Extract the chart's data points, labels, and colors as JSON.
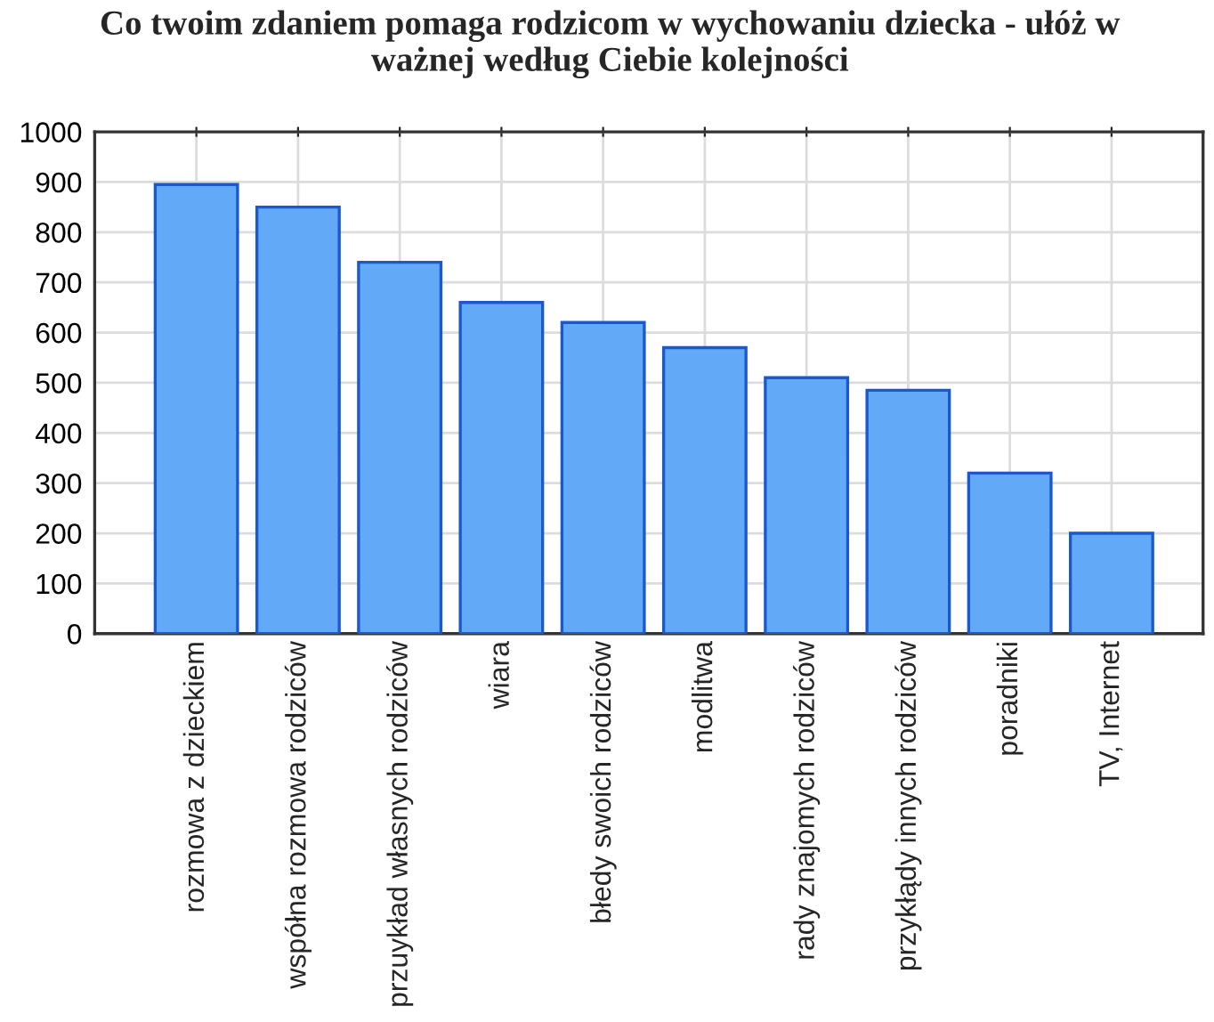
{
  "chart_data": {
    "type": "bar",
    "title": "Co twoim zdaniem pomaga rodzicom w wychowaniu dziecka - ułóż w ważnej według Ciebie kolejności",
    "categories": [
      "rozmowa z dzieckiem",
      "współna rozmowa rodziców",
      "przuykład własnych rodziców",
      "wiara",
      "błedy swoich rodziców",
      "modlitwa",
      "rady znajomych rodziców",
      "przykłądy innych rodziców",
      "poradniki",
      "TV, Internet"
    ],
    "values": [
      895,
      850,
      740,
      660,
      620,
      570,
      510,
      485,
      320,
      200
    ],
    "color": "#62aaf8",
    "ylim": [
      0,
      1000
    ],
    "yticks": [
      0,
      100,
      200,
      300,
      400,
      500,
      600,
      700,
      800,
      900,
      1000
    ],
    "grid": true
  }
}
